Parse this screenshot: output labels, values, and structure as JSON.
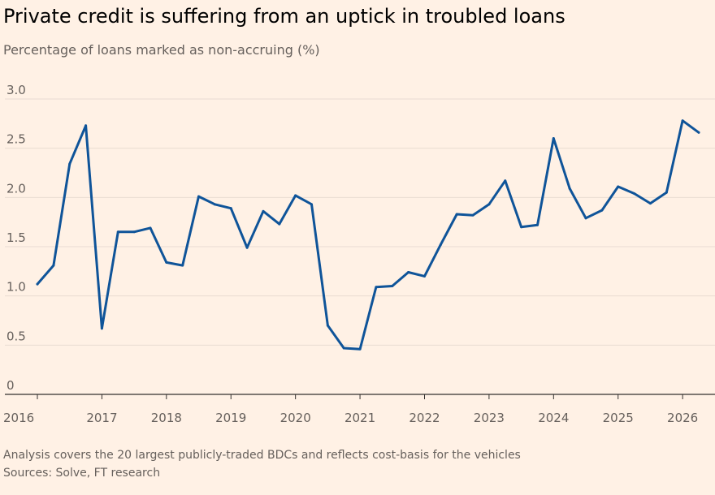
{
  "title": "Private credit is suffering from an uptick in troubled loans",
  "subtitle": "Percentage of loans marked as non-accruing (%)",
  "note": "Analysis covers the 20 largest publicly-traded BDCs and reflects cost-basis for the vehicles",
  "source": "Sources: Solve, FT research",
  "colors": {
    "background": "#fff1e5",
    "line": "#0f5499",
    "grid": "#e9dcd2",
    "axis": "#33302e"
  },
  "chart_data": {
    "type": "line",
    "title": "Private credit is suffering from an uptick in troubled loans",
    "ylabel": "Percentage of loans marked as non-accruing (%)",
    "xlabel": "",
    "ylim": [
      0,
      3.0
    ],
    "xlim": [
      2016,
      2026.5
    ],
    "grid": true,
    "legend": "none",
    "y_ticks": [
      0,
      0.5,
      1.0,
      1.5,
      2.0,
      2.5,
      3.0
    ],
    "y_tick_labels": [
      "0",
      "0.5",
      "1.0",
      "1.5",
      "2.0",
      "2.5",
      "3.0"
    ],
    "x_ticks": [
      2016,
      2017,
      2018,
      2019,
      2020,
      2021,
      2022,
      2023,
      2024,
      2025,
      2026
    ],
    "x_tick_labels": [
      "2016",
      "2017",
      "2018",
      "2019",
      "2020",
      "2021",
      "2022",
      "2023",
      "2024",
      "2025",
      "2026"
    ],
    "series": [
      {
        "x": [
          2016.0,
          2016.25,
          2016.5,
          2016.75,
          2017.0,
          2017.25,
          2017.5,
          2017.75,
          2018.0,
          2018.25,
          2018.5,
          2018.75,
          2019.0,
          2019.25,
          2019.5,
          2019.75,
          2020.0,
          2020.25,
          2020.5,
          2020.75,
          2021.0,
          2021.25,
          2021.5,
          2021.75,
          2022.0,
          2022.25,
          2022.5,
          2022.75,
          2023.0,
          2023.25,
          2023.5,
          2023.75,
          2024.0,
          2024.25,
          2024.5,
          2024.75,
          2025.0,
          2025.25,
          2025.5,
          2025.75,
          2026.0,
          2026.25
        ],
        "values": [
          1.12,
          1.31,
          2.34,
          2.73,
          0.67,
          1.65,
          1.65,
          1.69,
          1.34,
          1.31,
          2.01,
          1.93,
          1.89,
          1.49,
          1.86,
          1.73,
          2.02,
          1.93,
          0.7,
          0.47,
          0.46,
          1.09,
          1.1,
          1.24,
          1.2,
          1.52,
          1.83,
          1.82,
          1.93,
          2.17,
          1.7,
          1.72,
          2.6,
          2.09,
          1.79,
          1.87,
          2.11,
          2.04,
          1.94,
          2.05,
          2.78,
          2.66
        ]
      }
    ]
  }
}
